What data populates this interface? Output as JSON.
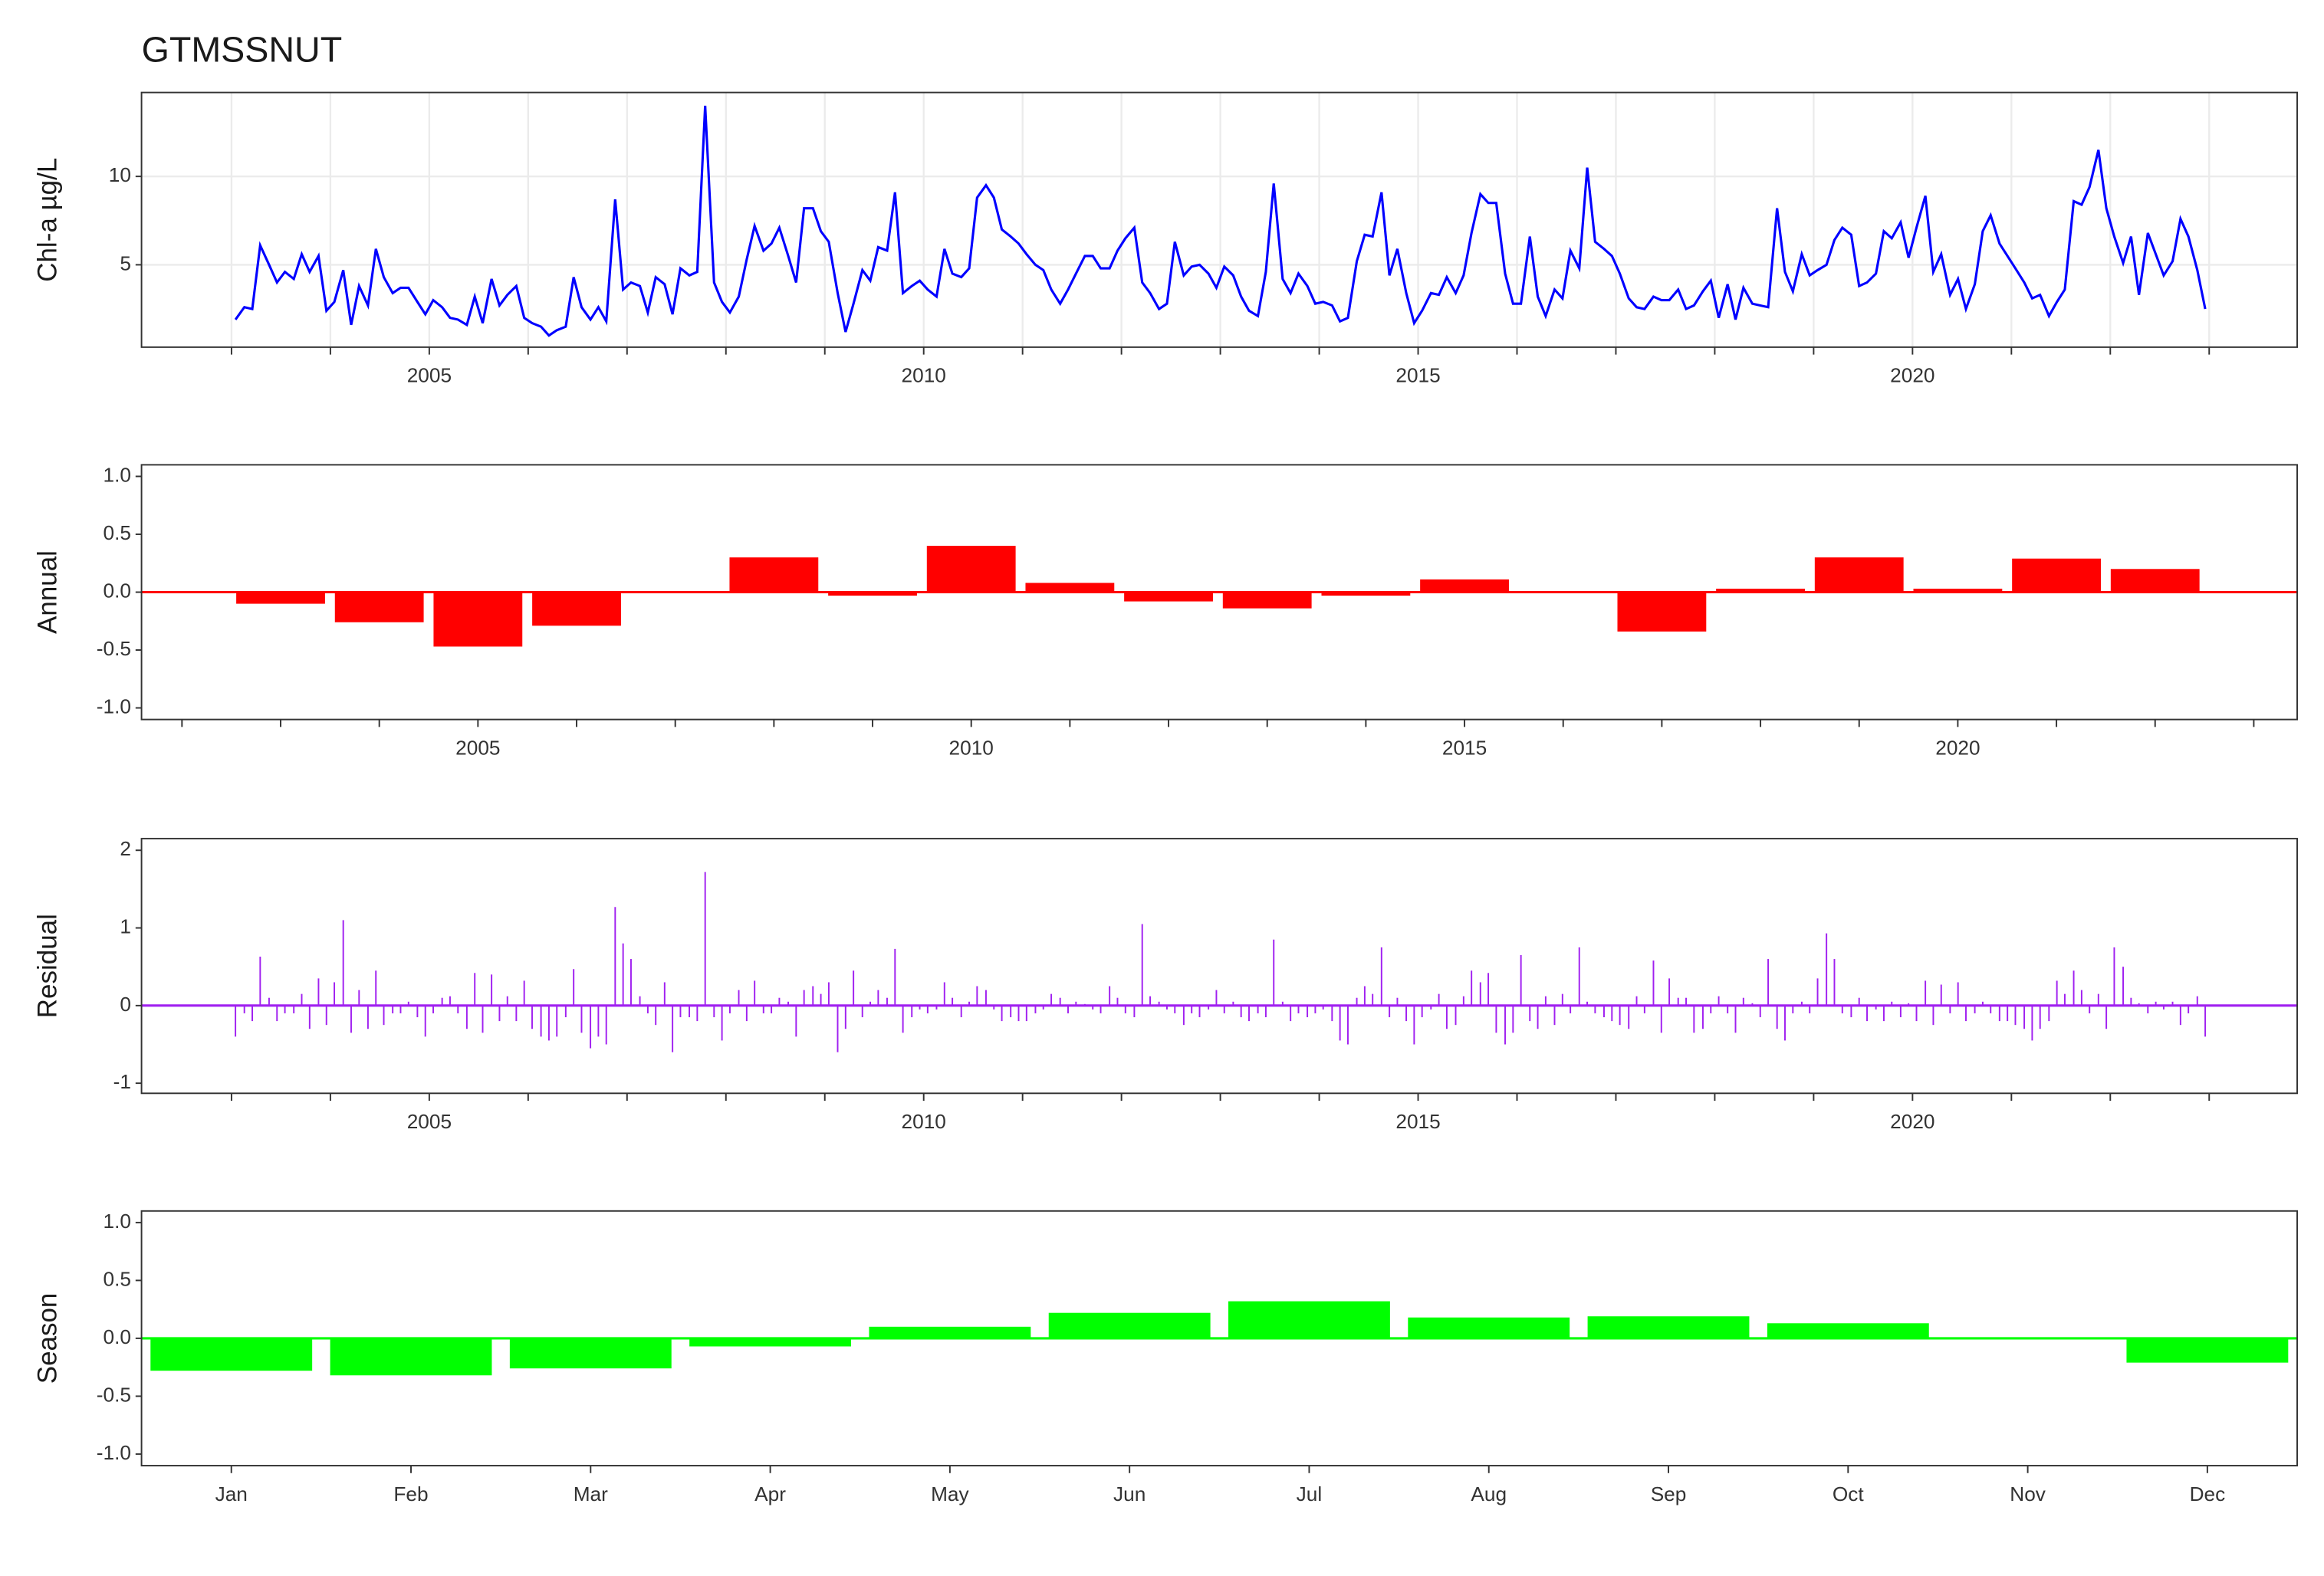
{
  "chart_data": [
    {
      "type": "line",
      "title": "GTMSSNUT",
      "y_label": "Chl-a µg/L",
      "x": [
        2003.04,
        2003.13,
        2003.21,
        2003.29,
        2003.38,
        2003.46,
        2003.54,
        2003.63,
        2003.71,
        2003.79,
        2003.88,
        2003.96,
        2004.04,
        2004.13,
        2004.21,
        2004.29,
        2004.38,
        2004.46,
        2004.54,
        2004.63,
        2004.71,
        2004.79,
        2004.88,
        2004.96,
        2005.04,
        2005.13,
        2005.21,
        2005.29,
        2005.38,
        2005.46,
        2005.54,
        2005.63,
        2005.71,
        2005.79,
        2005.88,
        2005.96,
        2006.04,
        2006.13,
        2006.21,
        2006.29,
        2006.38,
        2006.46,
        2006.54,
        2006.63,
        2006.71,
        2006.79,
        2006.88,
        2006.96,
        2007.04,
        2007.13,
        2007.21,
        2007.29,
        2007.38,
        2007.46,
        2007.54,
        2007.63,
        2007.71,
        2007.79,
        2007.88,
        2007.96,
        2008.04,
        2008.13,
        2008.21,
        2008.29,
        2008.38,
        2008.46,
        2008.54,
        2008.63,
        2008.71,
        2008.79,
        2008.88,
        2008.96,
        2009.04,
        2009.13,
        2009.21,
        2009.29,
        2009.38,
        2009.46,
        2009.54,
        2009.63,
        2009.71,
        2009.79,
        2009.88,
        2009.96,
        2010.04,
        2010.13,
        2010.21,
        2010.29,
        2010.38,
        2010.46,
        2010.54,
        2010.63,
        2010.71,
        2010.79,
        2010.88,
        2010.96,
        2011.04,
        2011.13,
        2011.21,
        2011.29,
        2011.38,
        2011.46,
        2011.54,
        2011.63,
        2011.71,
        2011.79,
        2011.88,
        2011.96,
        2012.04,
        2012.13,
        2012.21,
        2012.29,
        2012.38,
        2012.46,
        2012.54,
        2012.63,
        2012.71,
        2012.79,
        2012.88,
        2012.96,
        2013.04,
        2013.13,
        2013.21,
        2013.29,
        2013.38,
        2013.46,
        2013.54,
        2013.63,
        2013.71,
        2013.79,
        2013.88,
        2013.96,
        2014.04,
        2014.13,
        2014.21,
        2014.29,
        2014.38,
        2014.46,
        2014.54,
        2014.63,
        2014.71,
        2014.79,
        2014.88,
        2014.96,
        2015.04,
        2015.13,
        2015.21,
        2015.29,
        2015.38,
        2015.46,
        2015.54,
        2015.63,
        2015.71,
        2015.79,
        2015.88,
        2015.96,
        2016.04,
        2016.13,
        2016.21,
        2016.29,
        2016.38,
        2016.46,
        2016.54,
        2016.63,
        2016.71,
        2016.79,
        2016.88,
        2016.96,
        2017.04,
        2017.13,
        2017.21,
        2017.29,
        2017.38,
        2017.46,
        2017.54,
        2017.63,
        2017.71,
        2017.79,
        2017.88,
        2017.96,
        2018.04,
        2018.13,
        2018.21,
        2018.29,
        2018.38,
        2018.46,
        2018.54,
        2018.63,
        2018.71,
        2018.79,
        2018.88,
        2018.96,
        2019.04,
        2019.13,
        2019.21,
        2019.29,
        2019.38,
        2019.46,
        2019.54,
        2019.63,
        2019.71,
        2019.79,
        2019.88,
        2019.96,
        2020.04,
        2020.13,
        2020.21,
        2020.29,
        2020.38,
        2020.46,
        2020.54,
        2020.63,
        2020.71,
        2020.79,
        2020.88,
        2020.96,
        2021.04,
        2021.13,
        2021.21,
        2021.29,
        2021.38,
        2021.46,
        2021.54,
        2021.63,
        2021.71,
        2021.79,
        2021.88,
        2021.96,
        2022.04,
        2022.13,
        2022.21,
        2022.29,
        2022.38,
        2022.46,
        2022.54,
        2022.63,
        2022.71,
        2022.79,
        2022.88,
        2022.96
      ],
      "series": [
        {
          "color": "#0000ff",
          "values": [
            1.9,
            2.6,
            2.5,
            6.1,
            5.0,
            4.0,
            4.6,
            4.2,
            5.6,
            4.6,
            5.5,
            2.4,
            2.9,
            4.7,
            1.6,
            3.8,
            2.7,
            5.9,
            4.3,
            3.4,
            3.7,
            3.7,
            2.9,
            2.2,
            3.0,
            2.6,
            2.0,
            1.9,
            1.6,
            3.2,
            1.7,
            4.2,
            2.7,
            3.3,
            3.8,
            2.0,
            1.7,
            1.5,
            1.0,
            1.3,
            1.5,
            4.3,
            2.6,
            1.9,
            2.6,
            1.8,
            8.7,
            3.6,
            4.0,
            3.8,
            2.3,
            4.3,
            3.9,
            2.2,
            4.8,
            4.4,
            4.6,
            14.0,
            4.0,
            2.9,
            2.3,
            3.2,
            5.3,
            7.2,
            5.8,
            6.2,
            7.1,
            5.5,
            4.0,
            8.2,
            8.2,
            6.9,
            6.3,
            3.4,
            1.2,
            2.8,
            4.7,
            4.1,
            6.0,
            5.8,
            9.1,
            3.4,
            3.8,
            4.1,
            3.6,
            3.2,
            5.9,
            4.5,
            4.3,
            4.8,
            8.8,
            9.5,
            8.8,
            7.0,
            6.6,
            6.2,
            5.6,
            5.0,
            4.7,
            3.6,
            2.8,
            3.6,
            4.5,
            5.5,
            5.5,
            4.8,
            4.8,
            5.8,
            6.5,
            7.1,
            4.0,
            3.4,
            2.5,
            2.8,
            6.3,
            4.4,
            4.9,
            5.0,
            4.5,
            3.7,
            4.9,
            4.4,
            3.2,
            2.4,
            2.1,
            4.6,
            9.6,
            4.2,
            3.4,
            4.5,
            3.8,
            2.8,
            2.9,
            2.7,
            1.8,
            2.0,
            5.2,
            6.7,
            6.6,
            9.1,
            4.4,
            5.9,
            3.4,
            1.7,
            2.4,
            3.4,
            3.3,
            4.3,
            3.4,
            4.4,
            6.8,
            9.0,
            8.5,
            8.5,
            4.5,
            2.8,
            2.8,
            6.6,
            3.2,
            2.1,
            3.6,
            3.1,
            5.8,
            4.8,
            10.5,
            6.3,
            5.9,
            5.5,
            4.5,
            3.1,
            2.6,
            2.5,
            3.2,
            3.0,
            3.0,
            3.6,
            2.5,
            2.7,
            3.5,
            4.1,
            2.0,
            3.9,
            1.9,
            3.7,
            2.8,
            2.7,
            2.6,
            8.2,
            4.6,
            3.5,
            5.6,
            4.4,
            4.7,
            5.0,
            6.4,
            7.1,
            6.7,
            3.8,
            4.0,
            4.5,
            6.9,
            6.5,
            7.4,
            5.4,
            7.1,
            8.9,
            4.6,
            5.6,
            3.3,
            4.2,
            2.5,
            3.9,
            6.9,
            7.8,
            6.2,
            5.5,
            4.8,
            4.0,
            3.1,
            3.3,
            2.1,
            2.9,
            3.6,
            8.6,
            8.4,
            9.4,
            11.5,
            8.2,
            6.6,
            5.1,
            6.6,
            3.3,
            6.8,
            5.6,
            4.4,
            5.2,
            7.6,
            6.6,
            4.7,
            2.5
          ]
        }
      ],
      "xlim": [
        2002.09,
        2023.89
      ],
      "xticks": [
        2005,
        2010,
        2015,
        2020
      ],
      "x_minor_ticks": [
        2003,
        2004,
        2005,
        2006,
        2007,
        2008,
        2009,
        2010,
        2011,
        2012,
        2013,
        2014,
        2015,
        2016,
        2017,
        2018,
        2019,
        2020,
        2021,
        2022,
        2023
      ],
      "ylim": [
        0.34,
        14.75
      ],
      "yticks": [
        5,
        10
      ],
      "grid": true
    },
    {
      "type": "bar",
      "y_label": "Annual",
      "color": "#ff0000",
      "x": [
        2003,
        2004,
        2005,
        2006,
        2007,
        2008,
        2009,
        2010,
        2011,
        2012,
        2013,
        2014,
        2015,
        2016,
        2017,
        2018,
        2019,
        2020,
        2021,
        2022
      ],
      "values": [
        -0.1,
        -0.26,
        -0.47,
        -0.29,
        0,
        0.3,
        -0.03,
        0.4,
        0.08,
        -0.08,
        -0.14,
        -0.03,
        0.11,
        0,
        -0.34,
        0.03,
        0.3,
        0.03,
        0.29,
        0.2
      ],
      "xlim": [
        2001.59,
        2023.44
      ],
      "xticks": [
        2005,
        2010,
        2015,
        2020
      ],
      "x_minor_ticks": [
        2002,
        2003,
        2004,
        2005,
        2006,
        2007,
        2008,
        2009,
        2010,
        2011,
        2012,
        2013,
        2014,
        2015,
        2016,
        2017,
        2018,
        2019,
        2020,
        2021,
        2022,
        2023
      ],
      "ylim": [
        -1.1,
        1.1
      ],
      "yticks": [
        {
          "value": -1,
          "label": "-1.0"
        },
        {
          "value": -0.5,
          "label": "-0.5"
        },
        {
          "value": 0,
          "label": "0.0"
        },
        {
          "value": 0.5,
          "label": "0.5"
        },
        {
          "value": 1,
          "label": "1.0"
        }
      ],
      "grid": false
    },
    {
      "type": "spike",
      "y_label": "Residual",
      "color": "#a020f0",
      "x": [
        2003.04,
        2003.13,
        2003.21,
        2003.29,
        2003.38,
        2003.46,
        2003.54,
        2003.63,
        2003.71,
        2003.79,
        2003.88,
        2003.96,
        2004.04,
        2004.13,
        2004.21,
        2004.29,
        2004.38,
        2004.46,
        2004.54,
        2004.63,
        2004.71,
        2004.79,
        2004.88,
        2004.96,
        2005.04,
        2005.13,
        2005.21,
        2005.29,
        2005.38,
        2005.46,
        2005.54,
        2005.63,
        2005.71,
        2005.79,
        2005.88,
        2005.96,
        2006.04,
        2006.13,
        2006.21,
        2006.29,
        2006.38,
        2006.46,
        2006.54,
        2006.63,
        2006.71,
        2006.79,
        2006.88,
        2006.96,
        2007.04,
        2007.13,
        2007.21,
        2007.29,
        2007.38,
        2007.46,
        2007.54,
        2007.63,
        2007.71,
        2007.79,
        2007.88,
        2007.96,
        2008.04,
        2008.13,
        2008.21,
        2008.29,
        2008.38,
        2008.46,
        2008.54,
        2008.63,
        2008.71,
        2008.79,
        2008.88,
        2008.96,
        2009.04,
        2009.13,
        2009.21,
        2009.29,
        2009.38,
        2009.46,
        2009.54,
        2009.63,
        2009.71,
        2009.79,
        2009.88,
        2009.96,
        2010.04,
        2010.13,
        2010.21,
        2010.29,
        2010.38,
        2010.46,
        2010.54,
        2010.63,
        2010.71,
        2010.79,
        2010.88,
        2010.96,
        2011.04,
        2011.13,
        2011.21,
        2011.29,
        2011.38,
        2011.46,
        2011.54,
        2011.63,
        2011.71,
        2011.79,
        2011.88,
        2011.96,
        2012.04,
        2012.13,
        2012.21,
        2012.29,
        2012.38,
        2012.46,
        2012.54,
        2012.63,
        2012.71,
        2012.79,
        2012.88,
        2012.96,
        2013.04,
        2013.13,
        2013.21,
        2013.29,
        2013.38,
        2013.46,
        2013.54,
        2013.63,
        2013.71,
        2013.79,
        2013.88,
        2013.96,
        2014.04,
        2014.13,
        2014.21,
        2014.29,
        2014.38,
        2014.46,
        2014.54,
        2014.63,
        2014.71,
        2014.79,
        2014.88,
        2014.96,
        2015.04,
        2015.13,
        2015.21,
        2015.29,
        2015.38,
        2015.46,
        2015.54,
        2015.63,
        2015.71,
        2015.79,
        2015.88,
        2015.96,
        2016.04,
        2016.13,
        2016.21,
        2016.29,
        2016.38,
        2016.46,
        2016.54,
        2016.63,
        2016.71,
        2016.79,
        2016.88,
        2016.96,
        2017.04,
        2017.13,
        2017.21,
        2017.29,
        2017.38,
        2017.46,
        2017.54,
        2017.63,
        2017.71,
        2017.79,
        2017.88,
        2017.96,
        2018.04,
        2018.13,
        2018.21,
        2018.29,
        2018.38,
        2018.46,
        2018.54,
        2018.63,
        2018.71,
        2018.79,
        2018.88,
        2018.96,
        2019.04,
        2019.13,
        2019.21,
        2019.29,
        2019.38,
        2019.46,
        2019.54,
        2019.63,
        2019.71,
        2019.79,
        2019.88,
        2019.96,
        2020.04,
        2020.13,
        2020.21,
        2020.29,
        2020.38,
        2020.46,
        2020.54,
        2020.63,
        2020.71,
        2020.79,
        2020.88,
        2020.96,
        2021.04,
        2021.13,
        2021.21,
        2021.29,
        2021.38,
        2021.46,
        2021.54,
        2021.63,
        2021.71,
        2021.79,
        2021.88,
        2021.96,
        2022.04,
        2022.13,
        2022.21,
        2022.29,
        2022.38,
        2022.46,
        2022.54,
        2022.63,
        2022.71,
        2022.79,
        2022.88,
        2022.96
      ],
      "values": [
        -0.4,
        -0.1,
        -0.2,
        0.63,
        0.1,
        -0.2,
        -0.1,
        -0.1,
        0.15,
        -0.3,
        0.35,
        -0.25,
        0.3,
        1.1,
        -0.35,
        0.2,
        -0.3,
        0.45,
        -0.25,
        -0.1,
        -0.1,
        0.05,
        -0.15,
        -0.4,
        -0.1,
        0.1,
        0.12,
        -0.1,
        -0.3,
        0.42,
        -0.35,
        0.4,
        -0.2,
        0.12,
        -0.2,
        0.32,
        -0.3,
        -0.4,
        -0.45,
        -0.4,
        -0.15,
        0.47,
        -0.35,
        -0.55,
        -0.4,
        -0.5,
        1.27,
        0.8,
        0.6,
        0.12,
        -0.1,
        -0.25,
        0.3,
        -0.6,
        -0.15,
        -0.15,
        -0.2,
        1.72,
        -0.15,
        -0.45,
        -0.1,
        0.2,
        -0.2,
        0.32,
        -0.1,
        -0.1,
        0.1,
        0.05,
        -0.4,
        0.2,
        0.25,
        0.15,
        0.3,
        -0.6,
        -0.3,
        0.45,
        -0.15,
        0.05,
        0.2,
        0.1,
        0.73,
        -0.35,
        -0.15,
        -0.05,
        -0.1,
        -0.05,
        0.3,
        0.1,
        -0.15,
        0.05,
        0.25,
        0.2,
        -0.05,
        -0.2,
        -0.15,
        -0.2,
        -0.2,
        -0.1,
        -0.05,
        0.15,
        0.1,
        -0.1,
        0.05,
        0.02,
        -0.05,
        -0.1,
        0.25,
        0.1,
        -0.1,
        -0.15,
        1.05,
        0.12,
        0.05,
        -0.05,
        -0.1,
        -0.25,
        -0.1,
        -0.15,
        -0.05,
        0.2,
        -0.1,
        0.05,
        -0.15,
        -0.2,
        -0.1,
        -0.15,
        0.85,
        0.05,
        -0.2,
        -0.1,
        -0.15,
        -0.1,
        -0.05,
        -0.2,
        -0.45,
        -0.5,
        0.1,
        0.25,
        0.15,
        0.75,
        -0.15,
        0.1,
        -0.2,
        -0.5,
        -0.15,
        -0.05,
        0.15,
        -0.3,
        -0.25,
        0.12,
        0.45,
        0.3,
        0.42,
        -0.35,
        -0.5,
        -0.35,
        0.65,
        -0.2,
        -0.3,
        0.12,
        -0.25,
        0.15,
        -0.1,
        0.75,
        0.05,
        -0.1,
        -0.15,
        -0.2,
        -0.25,
        -0.3,
        0.12,
        -0.1,
        0.58,
        -0.35,
        0.35,
        0.1,
        0.1,
        -0.35,
        -0.3,
        -0.1,
        0.12,
        -0.1,
        -0.35,
        0.1,
        0.03,
        -0.15,
        0.6,
        -0.3,
        -0.45,
        -0.1,
        0.05,
        -0.1,
        0.35,
        0.93,
        0.6,
        -0.1,
        -0.15,
        0.1,
        -0.2,
        -0.05,
        -0.2,
        0.05,
        -0.15,
        0.03,
        -0.2,
        0.32,
        -0.25,
        0.27,
        -0.1,
        0.3,
        -0.2,
        -0.1,
        0.05,
        -0.1,
        -0.2,
        -0.2,
        -0.25,
        -0.3,
        -0.45,
        -0.3,
        -0.2,
        0.32,
        0.15,
        0.45,
        0.2,
        -0.1,
        0.15,
        -0.3,
        0.75,
        0.5,
        0.1,
        0.03,
        -0.1,
        0.05,
        -0.05,
        0.05,
        -0.25,
        -0.1,
        0.12,
        -0.4
      ],
      "xlim": [
        2002.09,
        2023.89
      ],
      "xticks": [
        2005,
        2010,
        2015,
        2020
      ],
      "x_minor_ticks": [
        2003,
        2004,
        2005,
        2006,
        2007,
        2008,
        2009,
        2010,
        2011,
        2012,
        2013,
        2014,
        2015,
        2016,
        2017,
        2018,
        2019,
        2020,
        2021,
        2022,
        2023
      ],
      "ylim": [
        -1.13,
        2.15
      ],
      "yticks": [
        -1,
        0,
        1,
        2
      ],
      "grid": false
    },
    {
      "type": "bar",
      "y_label": "Season",
      "color": "#00ff00",
      "categories": [
        "Jan",
        "Feb",
        "Mar",
        "Apr",
        "May",
        "Jun",
        "Jul",
        "Aug",
        "Sep",
        "Oct",
        "Nov",
        "Dec"
      ],
      "values": [
        -0.28,
        -0.32,
        -0.26,
        -0.07,
        0.1,
        0.22,
        0.32,
        0.18,
        0.19,
        0.13,
        0,
        -0.21
      ],
      "ylim": [
        -1.1,
        1.1
      ],
      "yticks": [
        {
          "value": -1,
          "label": "-1.0"
        },
        {
          "value": -0.5,
          "label": "-0.5"
        },
        {
          "value": 0,
          "label": "0.0"
        },
        {
          "value": 0.5,
          "label": "0.5"
        },
        {
          "value": 1,
          "label": "1.0"
        }
      ],
      "grid": false
    }
  ]
}
